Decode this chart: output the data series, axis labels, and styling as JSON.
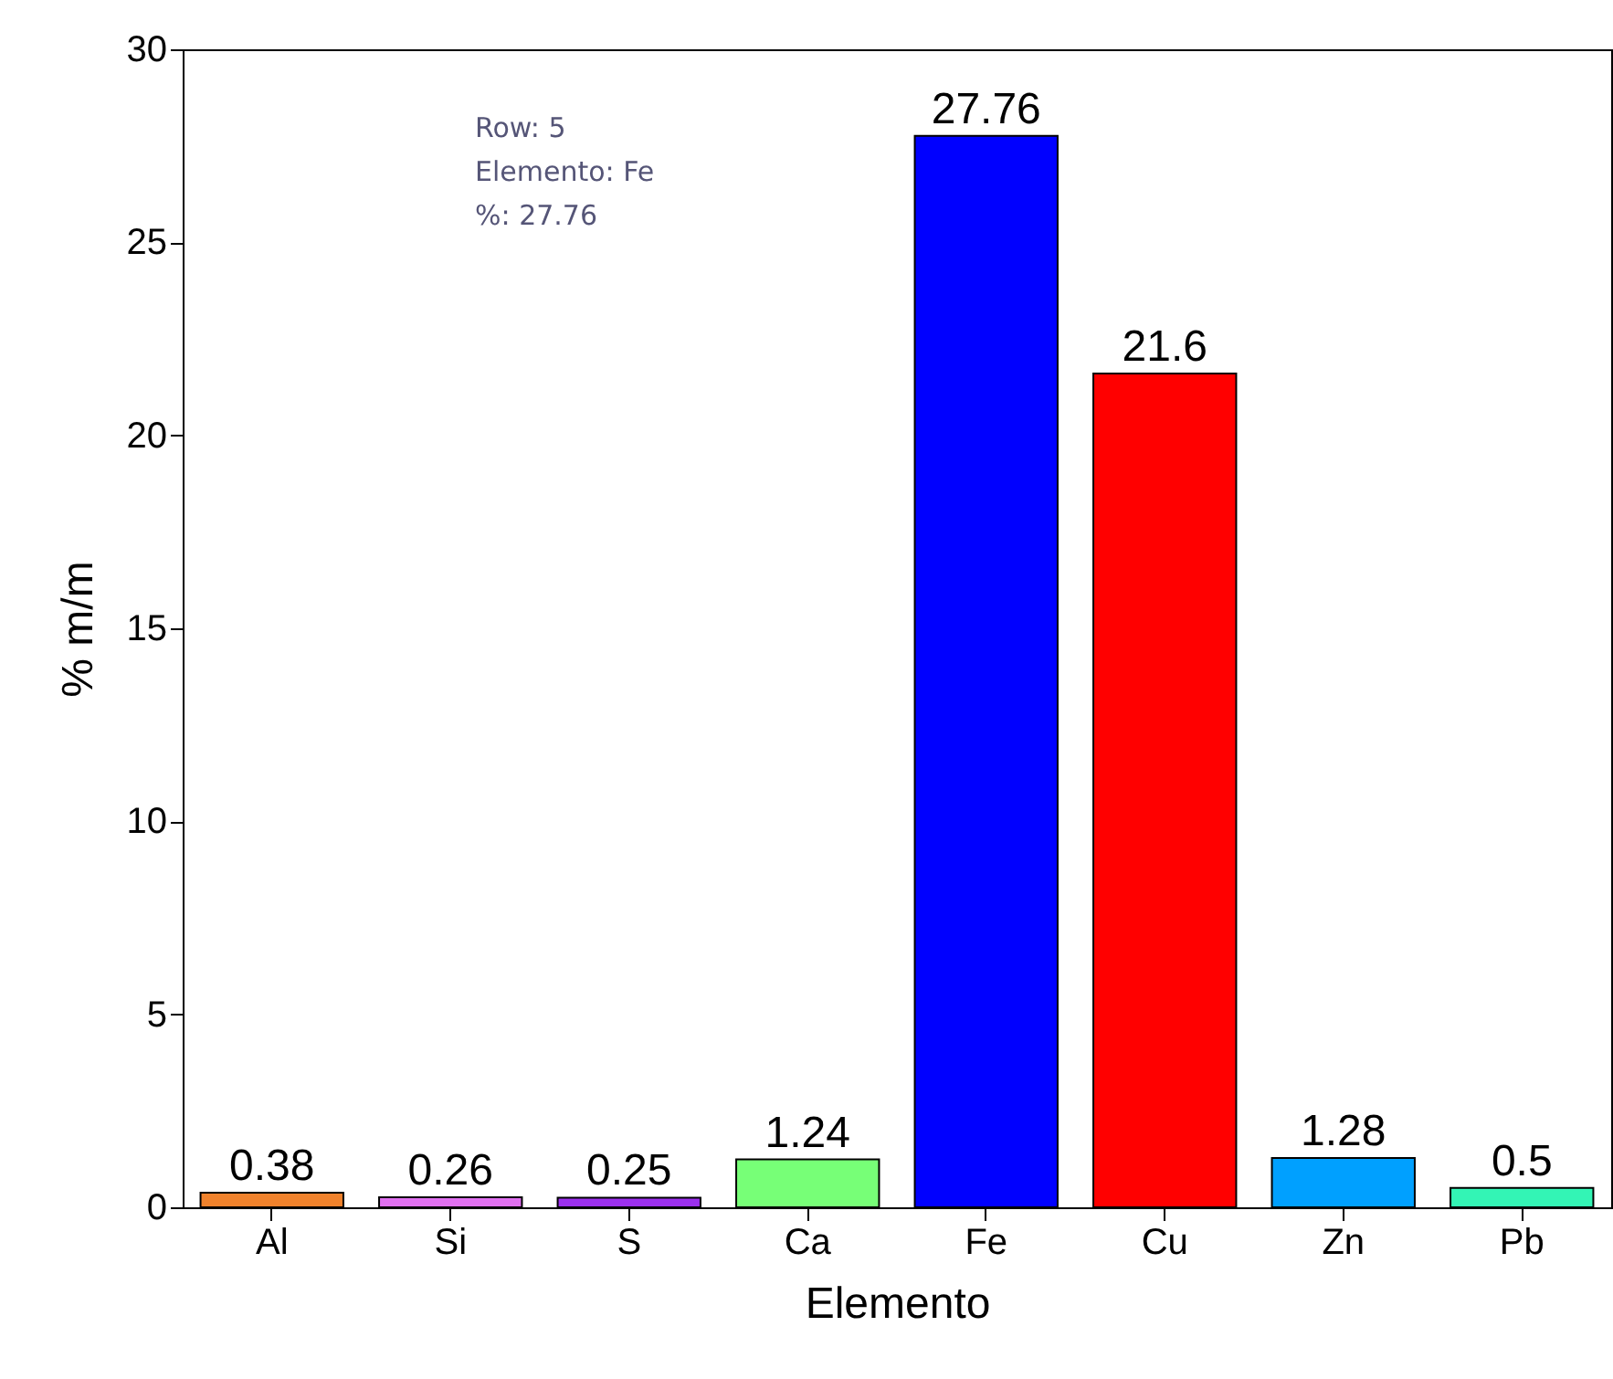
{
  "chart_data": {
    "type": "bar",
    "xlabel": "Elemento",
    "ylabel": "% m/m",
    "categories": [
      "Al",
      "Si",
      "S",
      "Ca",
      "Fe",
      "Cu",
      "Zn",
      "Pb"
    ],
    "values": [
      0.38,
      0.26,
      0.25,
      1.24,
      27.76,
      21.6,
      1.28,
      0.5
    ],
    "colors": [
      "#f0822c",
      "#e070f0",
      "#9b30ee",
      "#77ff77",
      "#0000ff",
      "#ff0000",
      "#00a0ff",
      "#33f5b5"
    ],
    "ylim": [
      0,
      30
    ],
    "yticks": [
      0,
      5,
      10,
      15,
      20,
      25,
      30
    ],
    "grid": false,
    "data_labels": true,
    "annotations": [
      "Row: 5",
      "Elemento: Fe",
      "%: 27.76"
    ]
  }
}
